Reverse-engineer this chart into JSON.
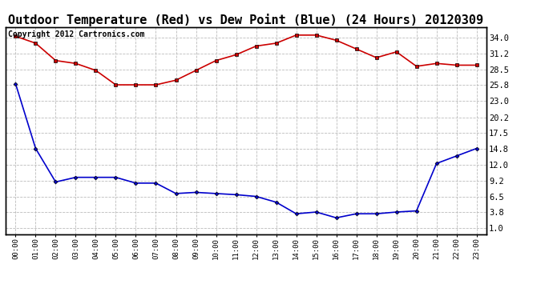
{
  "title": "Outdoor Temperature (Red) vs Dew Point (Blue) (24 Hours) 20120309",
  "copyright": "Copyright 2012 Cartronics.com",
  "x_labels": [
    "00:00",
    "01:00",
    "02:00",
    "03:00",
    "04:00",
    "05:00",
    "06:00",
    "07:00",
    "08:00",
    "09:00",
    "10:00",
    "11:00",
    "12:00",
    "13:00",
    "14:00",
    "15:00",
    "16:00",
    "17:00",
    "18:00",
    "19:00",
    "20:00",
    "21:00",
    "22:00",
    "23:00"
  ],
  "temp_red": [
    34.2,
    33.0,
    30.0,
    29.5,
    28.3,
    25.8,
    25.8,
    25.8,
    26.6,
    28.3,
    30.0,
    31.0,
    32.5,
    33.0,
    34.4,
    34.4,
    33.5,
    32.0,
    30.5,
    31.5,
    29.0,
    29.5,
    29.2,
    29.2
  ],
  "dew_blue": [
    26.0,
    14.8,
    9.0,
    9.8,
    9.8,
    9.8,
    8.8,
    8.8,
    7.0,
    7.2,
    7.0,
    6.8,
    6.5,
    5.5,
    3.5,
    3.8,
    2.8,
    3.5,
    3.5,
    3.8,
    4.0,
    12.2,
    13.5,
    14.8
  ],
  "yticks_right": [
    1.0,
    3.8,
    6.5,
    9.2,
    12.0,
    14.8,
    17.5,
    20.2,
    23.0,
    25.8,
    28.5,
    31.2,
    34.0
  ],
  "ylim": [
    0,
    35.8
  ],
  "bg_color": "#ffffff",
  "grid_color": "#bbbbbb",
  "red_color": "#cc0000",
  "blue_color": "#0000cc",
  "title_fontsize": 11,
  "copyright_fontsize": 7
}
